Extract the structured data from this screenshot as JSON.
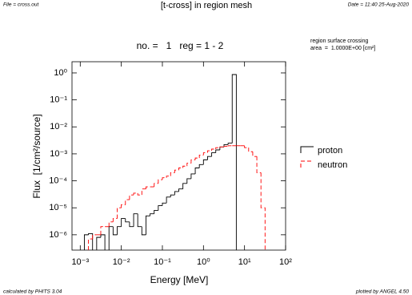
{
  "chart_data": {
    "type": "histogram",
    "file_label": "File = cross.out",
    "title": "[t-cross] in region mesh",
    "date_label": "Date = 11:40 25-Aug-2020",
    "subtitle": "no. =   1   reg = 1 - 2",
    "annotations": [
      "region surface crossing",
      "area  =  1.0000E+00 [cm²]"
    ],
    "xlabel": "Energy [MeV]",
    "ylabel": "Flux  [1/cm²/source]",
    "footer_left": "calculated by PHITS 3.04",
    "footer_right": "plotted by ANGEL 4.50",
    "log_x": true,
    "log_y": true,
    "xlim": [
      0.00063,
      100
    ],
    "ylim": [
      2.7e-07,
      2.6
    ],
    "xticks": [
      {
        "value": 0.001,
        "label": "10⁻³"
      },
      {
        "value": 0.01,
        "label": "10⁻²"
      },
      {
        "value": 0.1,
        "label": "10⁻¹"
      },
      {
        "value": 1,
        "label": "10⁰"
      },
      {
        "value": 10,
        "label": "10¹"
      },
      {
        "value": 100,
        "label": "10²"
      }
    ],
    "yticks": [
      {
        "value": 1e-06,
        "label": "10⁻⁶"
      },
      {
        "value": 1e-05,
        "label": "10⁻⁵"
      },
      {
        "value": 0.0001,
        "label": "10⁻⁴"
      },
      {
        "value": 0.001,
        "label": "10⁻³"
      },
      {
        "value": 0.01,
        "label": "10⁻²"
      },
      {
        "value": 0.1,
        "label": "10⁻¹"
      },
      {
        "value": 1,
        "label": "10⁰"
      }
    ],
    "bins": [
      0.001,
      0.001259,
      0.001585,
      0.001995,
      0.002512,
      0.003162,
      0.003981,
      0.005012,
      0.00631,
      0.007943,
      0.01,
      0.01259,
      0.01585,
      0.01995,
      0.02512,
      0.03162,
      0.03981,
      0.05012,
      0.0631,
      0.07943,
      0.1,
      0.1259,
      0.1585,
      0.1995,
      0.2512,
      0.3162,
      0.3981,
      0.5012,
      0.631,
      0.7943,
      1,
      1.259,
      1.585,
      1.995,
      2.512,
      3.162,
      3.981,
      5.012,
      6.31,
      7.943,
      10,
      12.59,
      15.85,
      19.95,
      25.12,
      31.62
    ],
    "series": [
      {
        "name": "proton",
        "color": "#000000",
        "dashed": false,
        "values": [
          null,
          1e-06,
          1.1e-06,
          null,
          8e-07,
          1e-06,
          null,
          2e-06,
          1e-06,
          2e-06,
          4e-06,
          3e-06,
          2e-06,
          6e-06,
          2e-06,
          1e-06,
          5e-06,
          6e-06,
          8e-06,
          1.2e-05,
          1.5e-05,
          2.5e-05,
          3e-05,
          4e-05,
          5e-05,
          8e-05,
          0.00012,
          0.00018,
          0.0003,
          0.0004,
          0.0006,
          0.0008,
          0.0011,
          0.0014,
          0.0018,
          0.0022,
          0.0025,
          0.87,
          null,
          null,
          null,
          null,
          null,
          null,
          null
        ]
      },
      {
        "name": "neutron",
        "color": "#ff0000",
        "dashed": true,
        "values": [
          null,
          null,
          7e-07,
          1e-06,
          1e-06,
          2e-06,
          2e-06,
          3e-06,
          4e-06,
          1e-05,
          1.3e-05,
          2e-05,
          3e-05,
          3.5e-05,
          3e-05,
          5e-05,
          6e-05,
          6e-05,
          8e-05,
          0.00011,
          0.00013,
          0.00015,
          0.0002,
          0.00025,
          0.0003,
          0.00035,
          0.00045,
          0.0006,
          0.0007,
          0.0009,
          0.0011,
          0.0013,
          0.0015,
          0.0017,
          0.0018,
          0.0019,
          0.002,
          0.002,
          0.002,
          0.002,
          0.0017,
          0.0012,
          0.0008,
          0.0002,
          1e-05
        ]
      }
    ]
  }
}
